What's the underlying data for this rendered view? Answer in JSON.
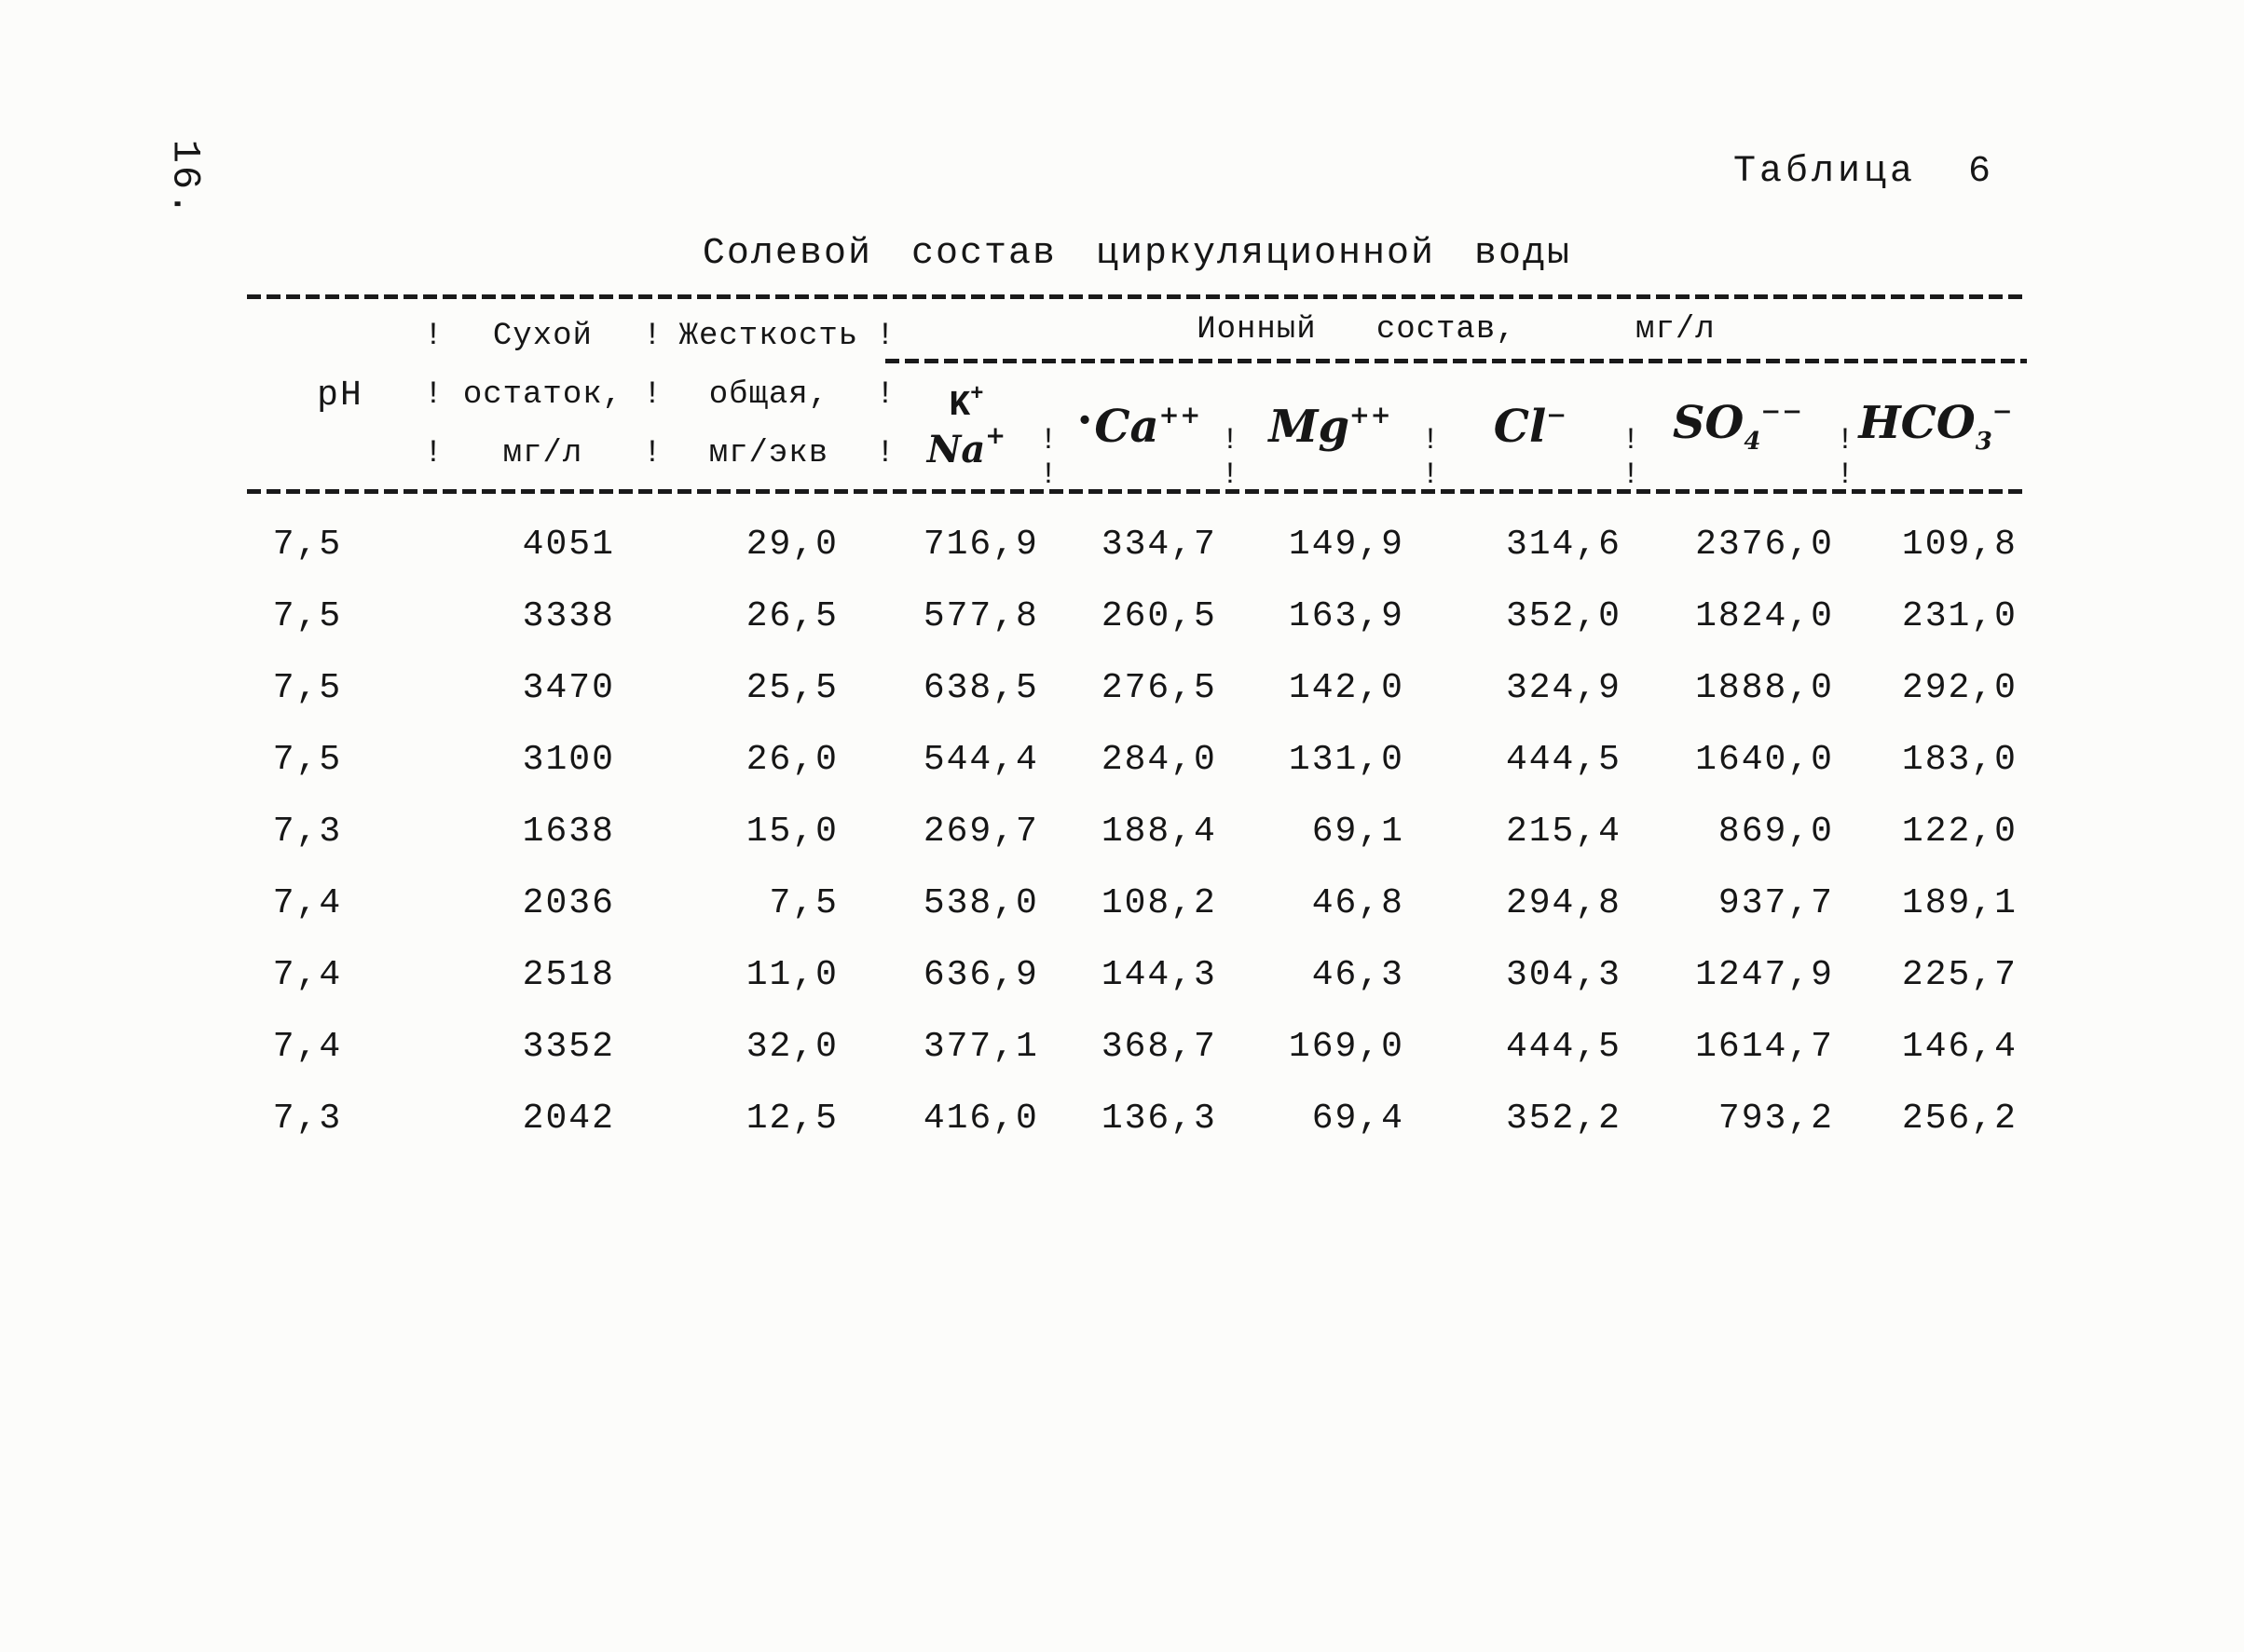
{
  "page": {
    "page_number": "16.",
    "table_label": "Таблица  6",
    "title": "Солевой состав циркуляционной воды"
  },
  "table": {
    "separator": "!",
    "header": {
      "ph": "pH",
      "col2_lines": [
        "Сухой",
        "остаток,",
        "мг/л"
      ],
      "col3_lines": [
        "Жесткость",
        "общая,",
        "мг/экв"
      ],
      "ion_group_title": "Ионный   состав,      мг/л",
      "ions": [
        {
          "top_base": "K",
          "top_sup": "+",
          "bottom_base": "Na",
          "bottom_sup": "+"
        },
        {
          "prefix": "•",
          "base": "Ca",
          "sup": "++"
        },
        {
          "base": "Mg",
          "sup": "++"
        },
        {
          "base": "Cl",
          "sup": "−"
        },
        {
          "base": "SO",
          "sub": "4",
          "sup": "−−"
        },
        {
          "base": "HCO",
          "sub": "3",
          "sup": "−"
        }
      ]
    },
    "rows": [
      [
        "7,5",
        "4051",
        "29,0",
        "716,9",
        "334,7",
        "149,9",
        "314,6",
        "2376,0",
        "109,8"
      ],
      [
        "7,5",
        "3338",
        "26,5",
        "577,8",
        "260,5",
        "163,9",
        "352,0",
        "1824,0",
        "231,0"
      ],
      [
        "7,5",
        "3470",
        "25,5",
        "638,5",
        "276,5",
        "142,0",
        "324,9",
        "1888,0",
        "292,0"
      ],
      [
        "7,5",
        "3100",
        "26,0",
        "544,4",
        "284,0",
        "131,0",
        "444,5",
        "1640,0",
        "183,0"
      ],
      [
        "7,3",
        "1638",
        "15,0",
        "269,7",
        "188,4",
        "69,1",
        "215,4",
        "869,0",
        "122,0"
      ],
      [
        "7,4",
        "2036",
        "7,5",
        "538,0",
        "108,2",
        "46,8",
        "294,8",
        "937,7",
        "189,1"
      ],
      [
        "7,4",
        "2518",
        "11,0",
        "636,9",
        "144,3",
        "46,3",
        "304,3",
        "1247,9",
        "225,7"
      ],
      [
        "7,4",
        "3352",
        "32,0",
        "377,1",
        "368,7",
        "169,0",
        "444,5",
        "1614,7",
        "146,4"
      ],
      [
        "7,3",
        "2042",
        "12,5",
        "416,0",
        "136,3",
        "69,4",
        "352,2",
        "793,2",
        "256,2"
      ]
    ]
  }
}
